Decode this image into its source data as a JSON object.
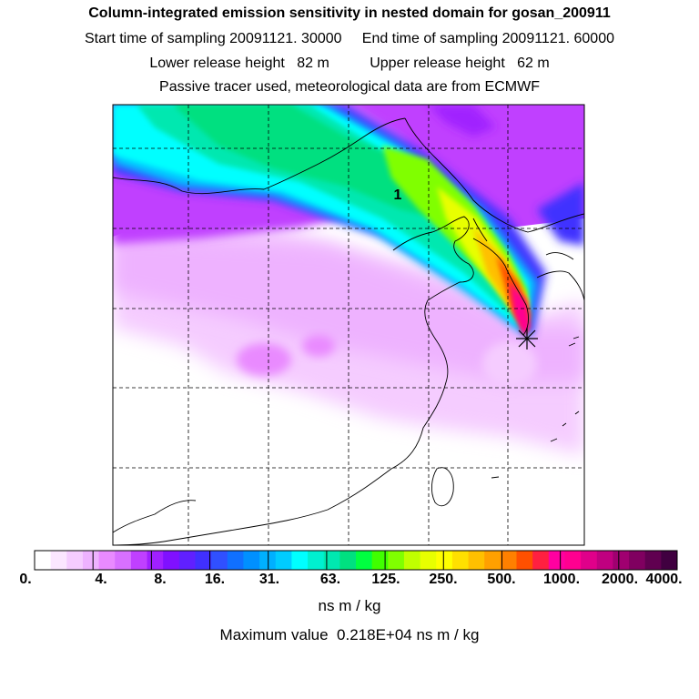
{
  "header": {
    "title": "Column-integrated emission sensitivity in nested domain for gosan_200911",
    "line2": "Start time of sampling 20091121. 30000     End time of sampling 20091121. 60000",
    "line3": "Lower release height   82 m          Upper release height   62 m",
    "line4": "Passive tracer used, meteorological data are from ECMWF"
  },
  "map": {
    "label": "1",
    "marker_icon": "asterisk-release-point-icon"
  },
  "colorbar": {
    "ticks": [
      "0.",
      "4.",
      "8.",
      "16.",
      "31.",
      "63.",
      "125.",
      "250.",
      "500.",
      "1000.",
      "2000.",
      "4000."
    ],
    "colors": [
      "#ffffff",
      "#fbe6ff",
      "#f5ccff",
      "#eeb2ff",
      "#e98aff",
      "#d870ff",
      "#c040ff",
      "#a020ff",
      "#8010ff",
      "#6020ff",
      "#4030ff",
      "#3050ff",
      "#1070ff",
      "#0090ff",
      "#00b0ff",
      "#00ccff",
      "#00ffff",
      "#00f0d0",
      "#00e8b0",
      "#00e080",
      "#00ff40",
      "#40ff00",
      "#80ff00",
      "#c0ff00",
      "#e8ff00",
      "#ffff00",
      "#ffe000",
      "#ffc000",
      "#ffa000",
      "#ff8000",
      "#ff5000",
      "#ff2040",
      "#ff00a0",
      "#ff0090",
      "#e0008a",
      "#c00080",
      "#a00070",
      "#800060",
      "#600050",
      "#400040"
    ],
    "unit": "ns m / kg",
    "max_text": "Maximum value  0.218E+04 ns m / kg"
  }
}
